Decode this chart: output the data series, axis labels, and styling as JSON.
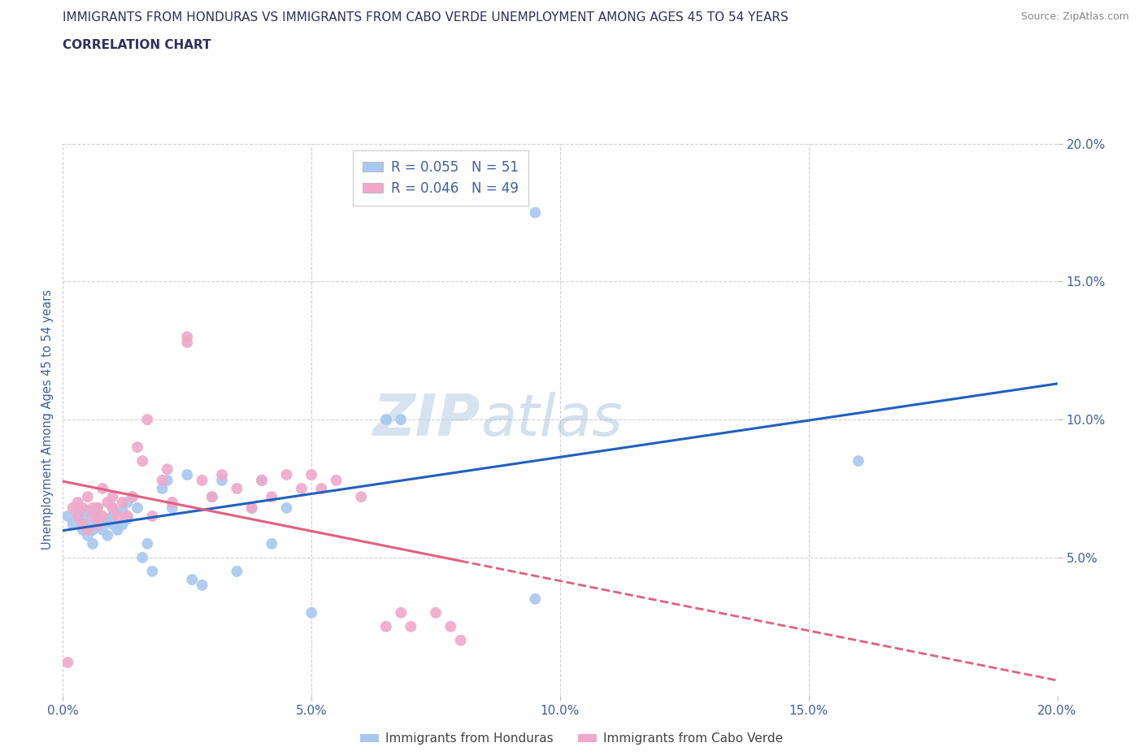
{
  "title_line1": "IMMIGRANTS FROM HONDURAS VS IMMIGRANTS FROM CABO VERDE UNEMPLOYMENT AMONG AGES 45 TO 54 YEARS",
  "title_line2": "CORRELATION CHART",
  "source_text": "Source: ZipAtlas.com",
  "ylabel": "Unemployment Among Ages 45 to 54 years",
  "xmin": 0.0,
  "xmax": 0.2,
  "ymin": 0.0,
  "ymax": 0.2,
  "xticks": [
    0.0,
    0.05,
    0.1,
    0.15,
    0.2
  ],
  "yticks": [
    0.05,
    0.1,
    0.15,
    0.2
  ],
  "xtick_labels": [
    "0.0%",
    "5.0%",
    "10.0%",
    "15.0%",
    "20.0%"
  ],
  "ytick_labels": [
    "5.0%",
    "10.0%",
    "15.0%",
    "20.0%"
  ],
  "grid_color": "#cccccc",
  "background_color": "#ffffff",
  "watermark_zip": "ZIP",
  "watermark_atlas": "atlas",
  "legend_R1": "R = 0.055",
  "legend_N1": "N = 51",
  "legend_R2": "R = 0.046",
  "legend_N2": "N = 49",
  "series1_color": "#a8c8f0",
  "series2_color": "#f0a8c8",
  "series1_line_color": "#2060c0",
  "series2_line_color": "#e06080",
  "series1_label": "Immigrants from Honduras",
  "series2_label": "Immigrants from Cabo Verde",
  "title_color": "#303060",
  "axis_label_color": "#4060a0",
  "tick_color": "#4060a0",
  "honduras_x": [
    0.001,
    0.002,
    0.003,
    0.003,
    0.004,
    0.004,
    0.005,
    0.005,
    0.005,
    0.006,
    0.006,
    0.006,
    0.007,
    0.007,
    0.007,
    0.008,
    0.008,
    0.009,
    0.009,
    0.01,
    0.01,
    0.01,
    0.011,
    0.012,
    0.012,
    0.013,
    0.013,
    0.014,
    0.015,
    0.016,
    0.017,
    0.018,
    0.02,
    0.021,
    0.022,
    0.025,
    0.026,
    0.028,
    0.03,
    0.032,
    0.035,
    0.038,
    0.04,
    0.042,
    0.045,
    0.05,
    0.065,
    0.068,
    0.095,
    0.095,
    0.16
  ],
  "honduras_y": [
    0.065,
    0.062,
    0.065,
    0.068,
    0.06,
    0.064,
    0.058,
    0.062,
    0.067,
    0.055,
    0.06,
    0.066,
    0.062,
    0.065,
    0.068,
    0.06,
    0.064,
    0.058,
    0.063,
    0.062,
    0.065,
    0.068,
    0.06,
    0.062,
    0.067,
    0.07,
    0.064,
    0.072,
    0.068,
    0.05,
    0.055,
    0.045,
    0.075,
    0.078,
    0.068,
    0.08,
    0.042,
    0.04,
    0.072,
    0.078,
    0.045,
    0.068,
    0.078,
    0.055,
    0.068,
    0.03,
    0.1,
    0.1,
    0.175,
    0.035,
    0.085
  ],
  "caboverde_x": [
    0.001,
    0.002,
    0.003,
    0.003,
    0.004,
    0.004,
    0.005,
    0.005,
    0.006,
    0.006,
    0.007,
    0.007,
    0.008,
    0.008,
    0.009,
    0.01,
    0.01,
    0.011,
    0.012,
    0.013,
    0.014,
    0.015,
    0.016,
    0.017,
    0.018,
    0.02,
    0.021,
    0.022,
    0.025,
    0.025,
    0.028,
    0.03,
    0.032,
    0.035,
    0.038,
    0.04,
    0.042,
    0.045,
    0.048,
    0.05,
    0.052,
    0.055,
    0.06,
    0.065,
    0.068,
    0.07,
    0.075,
    0.078,
    0.08
  ],
  "caboverde_y": [
    0.012,
    0.068,
    0.065,
    0.07,
    0.062,
    0.068,
    0.072,
    0.06,
    0.065,
    0.068,
    0.062,
    0.068,
    0.065,
    0.075,
    0.07,
    0.068,
    0.072,
    0.065,
    0.07,
    0.065,
    0.072,
    0.09,
    0.085,
    0.1,
    0.065,
    0.078,
    0.082,
    0.07,
    0.13,
    0.128,
    0.078,
    0.072,
    0.08,
    0.075,
    0.068,
    0.078,
    0.072,
    0.08,
    0.075,
    0.08,
    0.075,
    0.078,
    0.072,
    0.025,
    0.03,
    0.025,
    0.03,
    0.025,
    0.02
  ]
}
